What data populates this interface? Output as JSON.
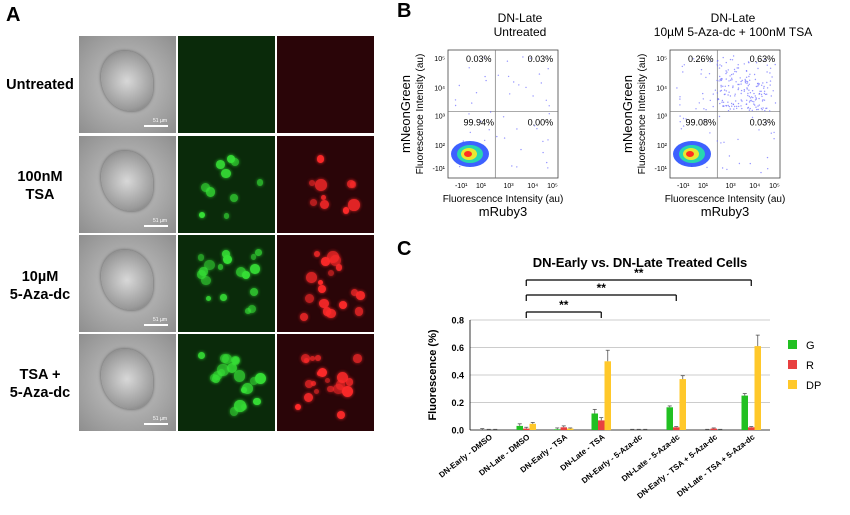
{
  "panel_a": {
    "letter": "A",
    "rows": [
      {
        "label_line1": "Untreated",
        "label_line2": "",
        "scale": "51 µm"
      },
      {
        "label_line1": "100nM",
        "label_line2": "TSA",
        "scale": "51 µm"
      },
      {
        "label_line1": "10µM",
        "label_line2": "5-Aza-dc",
        "scale": "51 µm"
      },
      {
        "label_line1": "TSA +",
        "label_line2": "5-Aza-dc",
        "scale": "51 µm"
      }
    ]
  },
  "panel_b": {
    "letter": "B",
    "plots": [
      {
        "title_line1": "DN-Late",
        "title_line2": "Untreated",
        "quadrants": {
          "ul": "0.03%",
          "ur": "0.03%",
          "ll": "99.94%",
          "lr": "0.00%"
        }
      },
      {
        "title_line1": "DN-Late",
        "title_line2": "10µM 5-Aza-dc + 100nM TSA",
        "quadrants": {
          "ul": "0.26%",
          "ur": "0.63%",
          "ll": "99.08%",
          "lr": "0.03%"
        }
      }
    ],
    "y_axis_line1": "mNeonGreen",
    "y_axis_line2": "Fluorescence Intensity (au)",
    "x_axis_line1": "Fluorescence Intensity (au)",
    "x_axis_line2": "mRuby3",
    "x_ticks": [
      "-10¹",
      "10¹",
      "10³",
      "10⁴",
      "10⁵"
    ],
    "y_ticks": [
      "10⁵",
      "10⁴",
      "10³",
      "10²",
      "-10¹"
    ]
  },
  "panel_c": {
    "letter": "C",
    "significance": [
      "**",
      "**",
      "**"
    ]
  },
  "chart_data": {
    "type": "bar",
    "title": "DN-Early vs. DN-Late Treated Cells",
    "xlabel": "",
    "ylabel": "Fluorescence (%)",
    "ylim": [
      0,
      0.8
    ],
    "yticks": [
      "0.0",
      "0.2",
      "0.4",
      "0.6",
      "0.8"
    ],
    "grid": true,
    "legend_position": "right",
    "categories": [
      "DN-Early - DMSO",
      "DN-Late - DMSO",
      "DN-Early - TSA",
      "DN-Late - TSA",
      "DN-Early - 5-Aza-dc",
      "DN-Late - 5-Aza-dc",
      "DN-Early - TSA + 5-Aza-dc",
      "DN-Late - TSA + 5-Aza-dc"
    ],
    "series": [
      {
        "name": "G",
        "color": "#22c022",
        "values": [
          0.0,
          0.03,
          0.005,
          0.12,
          0.0,
          0.165,
          0.0,
          0.25
        ],
        "errors": [
          0.01,
          0.015,
          0.01,
          0.03,
          0.005,
          0.01,
          0.005,
          0.015
        ]
      },
      {
        "name": "R",
        "color": "#e84040",
        "values": [
          0.0,
          0.01,
          0.02,
          0.07,
          0.0,
          0.02,
          0.01,
          0.02
        ],
        "errors": [
          0.005,
          0.01,
          0.01,
          0.02,
          0.005,
          0.005,
          0.005,
          0.005
        ]
      },
      {
        "name": "DP",
        "color": "#ffc82a",
        "values": [
          0.0,
          0.045,
          0.01,
          0.5,
          0.0,
          0.37,
          0.0,
          0.61
        ],
        "errors": [
          0.005,
          0.01,
          0.005,
          0.08,
          0.005,
          0.025,
          0.005,
          0.08
        ]
      }
    ]
  }
}
